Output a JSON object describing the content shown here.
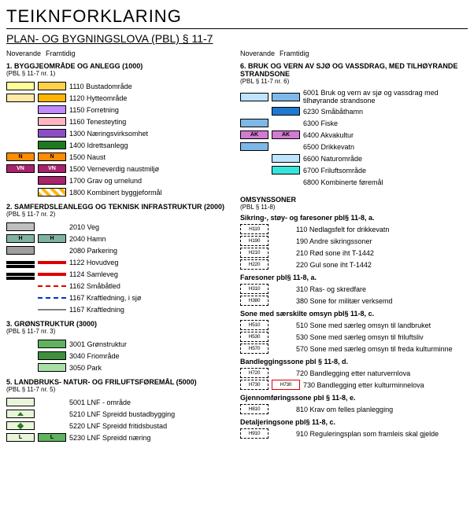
{
  "header": {
    "title": "TEIKNFORKLARING",
    "subtitle": "PLAN- OG BYGNINGSLOVA (PBL) § 11-7"
  },
  "column_headers": {
    "left": "Noverande",
    "right": "Framtidig"
  },
  "left": {
    "sec1": {
      "title": "1. BYGGJEOMRÅDE OG ANLEGG (1000)",
      "sub": "(PBL § 11-7 nr. 1)",
      "items": [
        {
          "c1": "#ffff99",
          "c2": "#ffd24a",
          "t": "1110 Bustadområde"
        },
        {
          "c1": "#ffe9a8",
          "c2": "#ffb400",
          "t": "1120 Hytteområde"
        },
        {
          "c1": "",
          "c2": "#c08bff",
          "t": "1150 Forretning"
        },
        {
          "c1": "",
          "c2": "#ffb6c1",
          "t": "1160 Tenesteyting"
        },
        {
          "c1": "",
          "c2": "#8e4ec6",
          "t": "1300 Næringsvirksomhet"
        },
        {
          "c1": "",
          "c2": "#1f7a1f",
          "t": "1400 Idrettsanlegg"
        },
        {
          "c1": "#ff8c00",
          "c2": "#ff8c00",
          "l1": "N",
          "l2": "N",
          "t": "1500 Naust"
        },
        {
          "c1": "#a8236b",
          "c2": "#a8236b",
          "l1": "VN",
          "l2": "VN",
          "t": "1500 Verneverdig naustmiljø"
        },
        {
          "c1": "",
          "c2": "#a8236b",
          "t": "1700 Grav og urnelund"
        },
        {
          "c1": "",
          "c2": "hatch",
          "t": "1800 Kombinert byggjeformål"
        }
      ]
    },
    "sec2": {
      "title": "2. SAMFERDSLEANLEGG OG TEKNISK INFRASTRUKTUR (2000)",
      "sub": "(PBL § 11-7 nr. 2)",
      "items_fill": [
        {
          "c1": "#bfbfbf",
          "c2": "",
          "t": "2010 Veg"
        },
        {
          "c1": "#7fb3a0",
          "c2": "#7fb3a0",
          "l1": "H",
          "l2": "H",
          "t": "2040 Hamn"
        },
        {
          "c1": "#9e9e9e",
          "c2": "",
          "t": "2080 Parkering"
        }
      ],
      "items_line": [
        {
          "style": "double",
          "c": "#d00",
          "t": "1122 Hovudveg"
        },
        {
          "style": "double",
          "c": "#d00",
          "t": "1124 Samleveg"
        },
        {
          "style": "dash",
          "c": "#d00",
          "t": "1162 Småbåtled"
        },
        {
          "style": "dash",
          "c": "#0033cc",
          "t": "1167 Kraftledning, i sjø"
        },
        {
          "style": "thin",
          "c": "#000",
          "t": "1167 Kraftledning"
        }
      ]
    },
    "sec3": {
      "title": "3. GRØNSTRUKTUR (3000)",
      "sub": "(PBL § 11-7 nr. 3)",
      "items": [
        {
          "c2": "#5fb35f",
          "t": "3001 Grønstruktur"
        },
        {
          "c2": "#3f8f3f",
          "t": "3040 Friområde"
        },
        {
          "c2": "#a8e0a8",
          "t": "3050 Park"
        }
      ]
    },
    "sec5": {
      "title": "5. LANDBRUKS- NATUR- OG FRILUFTSFØREMÅL (5000)",
      "sub": "(PBL § 11-7 nr. 5)",
      "items": [
        {
          "c1": "#e8f5d8",
          "t": "5001 LNF - område"
        },
        {
          "c1": "#e8f5d8",
          "mark": "house",
          "t": "5210 LNF Spreidd bustadbygging"
        },
        {
          "c1": "#e8f5d8",
          "mark": "tri",
          "t": "5220 LNF Spreidd fritidsbustad"
        },
        {
          "c1": "#e8f5d8",
          "c2": "#5fb35f",
          "l1": "L",
          "l2": "L",
          "t": "5230 LNF Spreidd næring"
        }
      ]
    }
  },
  "right": {
    "sec6": {
      "title": "6. BRUK OG VERN AV SJØ OG VASSDRAG, MED TILHØYRANDE STRANDSONE",
      "sub": "(PBL § 11-7 nr. 6)",
      "items": [
        {
          "c1": "#bfe4ff",
          "c2": "#7db8e8",
          "t": "6001 Bruk og vern av sjø og vassdrag med tilhøyrande strandsone"
        },
        {
          "c1": "",
          "c2": "#1f78d1",
          "t": "6230 Småbåthamn"
        },
        {
          "c1": "#7db8e8",
          "c2": "",
          "t": "6300 Fiske"
        },
        {
          "c1": "#d17bd1",
          "c2": "#d17bd1",
          "l1": "AK",
          "l2": "AK",
          "t": "6400 Akvakultur"
        },
        {
          "c1": "#7db8e8",
          "c2": "",
          "t": "6500 Drikkevatn"
        },
        {
          "c1": "",
          "c2": "#bfe4ff",
          "t": "6600 Naturområde"
        },
        {
          "c1": "",
          "c2": "#33e6d9",
          "t": "6700  Friluftsområde"
        },
        {
          "c1": "",
          "c2": "",
          "t": "6800 Kombinerte føremål"
        }
      ]
    },
    "omsyn": {
      "title": "OMSYNSSONER",
      "sub": "(PBL § 11-8)",
      "groups": [
        {
          "title": "Sikring-, støy- og faresoner pbl§ 11-8, a.",
          "items": [
            {
              "z": "H110",
              "t": "110 Nedlagsfelt for drikkevatn"
            },
            {
              "z": "H190",
              "t": "190 Andre sikringssoner"
            },
            {
              "z": "H210",
              "t": "210 Rød sone iht T-1442"
            },
            {
              "z": "H220",
              "t": "220 Gul sone iht T-1442"
            }
          ]
        },
        {
          "title": "Faresoner pbl§ 11-8, a.",
          "items": [
            {
              "z": "H310",
              "t": "310 Ras- og skredfare"
            },
            {
              "z": "H380",
              "t": "380 Sone for militær verksemd"
            }
          ]
        },
        {
          "title": "Sone med særskilte omsyn pbl§ 11-8, c.",
          "items": [
            {
              "z": "H510",
              "t": "510 Sone med særleg omsyn til landbruket"
            },
            {
              "z": "H530",
              "t": "530 Sone med særleg omsyn til friluftsliv"
            },
            {
              "z": "H570",
              "t": "570 Sone med særleg omsyn til freda kulturminne"
            }
          ]
        },
        {
          "title": "Bandleggingssone pbl § 11-8, d.",
          "items": [
            {
              "z": "H720",
              "t": "720 Bandlegging etter naturvernlova"
            },
            {
              "z": "H730",
              "z2": "H730",
              "t": "730 Bandlegging etter kulturminnelova"
            }
          ]
        },
        {
          "title": "Gjennomføringssone pbl § 11-8, e.",
          "items": [
            {
              "z": "H810",
              "t": "810 Krav om felles planlegging"
            }
          ]
        },
        {
          "title": "Detaljeringsone pbl§ 11-8, c.",
          "items": [
            {
              "z": "H910",
              "t": "910 Reguleringsplan som framleis skal gjelde"
            }
          ]
        }
      ]
    }
  }
}
